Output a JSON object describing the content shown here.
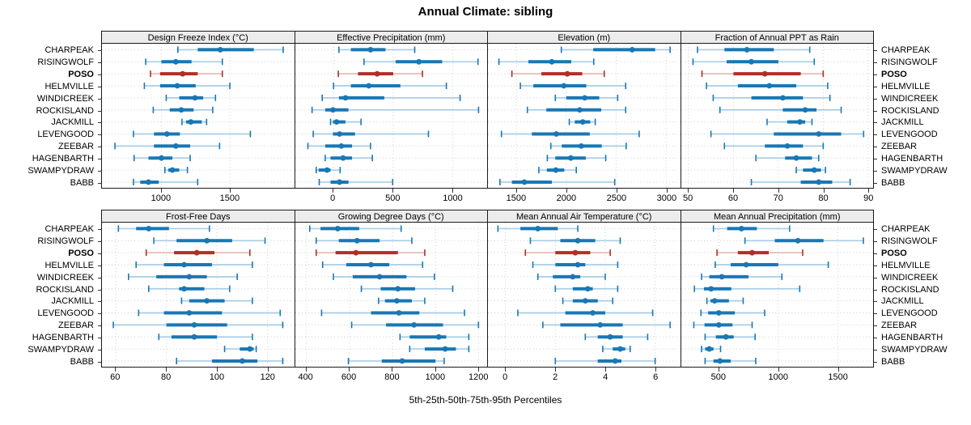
{
  "title": "Annual Climate: sibling",
  "caption": "5th-25th-50th-75th-95th Percentiles",
  "highlight_site": "POSO",
  "sites": [
    "CHARPEAK",
    "RISINGWOLF",
    "POSO",
    "HELMVILLE",
    "WINDICREEK",
    "ROCKISLAND",
    "JACKMILL",
    "LEVENGOOD",
    "ZEEBAR",
    "HAGENBARTH",
    "SWAMPYDRAW",
    "BABB"
  ],
  "colors": {
    "blue": "#1878b4",
    "blue_light": "#a9cde6",
    "red": "#b22e25",
    "red_light": "#e6bcb8",
    "grid": "#cfcfcf",
    "border": "#1a1a1a",
    "header_bg": "#ececec"
  },
  "chart_data": {
    "type": "dotplot-percentiles",
    "percentile_labels": [
      "5th",
      "25th",
      "50th",
      "75th",
      "95th"
    ],
    "grid": {
      "rows": 2,
      "cols": 4
    },
    "panels": [
      {
        "title": "Design Freeze Index (°C)",
        "xlim": [
          565,
          1970
        ],
        "ticks": [
          1000,
          1500
        ],
        "values": [
          [
            1120,
            1265,
            1430,
            1675,
            1890
          ],
          [
            885,
            1000,
            1105,
            1220,
            1445
          ],
          [
            920,
            990,
            1155,
            1265,
            1445
          ],
          [
            875,
            990,
            1115,
            1250,
            1500
          ],
          [
            1035,
            1130,
            1245,
            1305,
            1395
          ],
          [
            940,
            1060,
            1145,
            1235,
            1375
          ],
          [
            1150,
            1180,
            1215,
            1295,
            1330
          ],
          [
            795,
            945,
            1040,
            1135,
            1650
          ],
          [
            660,
            945,
            1105,
            1210,
            1425
          ],
          [
            800,
            905,
            1000,
            1080,
            1210
          ],
          [
            1025,
            1050,
            1080,
            1130,
            1190
          ],
          [
            795,
            845,
            905,
            980,
            1265
          ]
        ]
      },
      {
        "title": "Effective Precipitation (mm)",
        "xlim": [
          -320,
          1290
        ],
        "ticks": [
          0,
          500,
          1000
        ],
        "values": [
          [
            45,
            145,
            310,
            435,
            680
          ],
          [
            255,
            520,
            715,
            910,
            1210
          ],
          [
            40,
            205,
            365,
            500,
            745
          ],
          [
            0,
            145,
            295,
            560,
            945
          ],
          [
            -95,
            45,
            100,
            425,
            1060
          ],
          [
            -180,
            -70,
            -5,
            125,
            1215
          ],
          [
            -25,
            -5,
            25,
            100,
            230
          ],
          [
            -170,
            -5,
            50,
            180,
            795
          ],
          [
            -215,
            -70,
            65,
            155,
            310
          ],
          [
            -70,
            -25,
            80,
            155,
            325
          ],
          [
            -145,
            -125,
            -55,
            -25,
            55
          ],
          [
            -120,
            -25,
            50,
            125,
            495
          ]
        ]
      },
      {
        "title": "Elevation (m)",
        "xlim": [
          1215,
          3140
        ],
        "ticks": [
          1500,
          2000,
          2500,
          3000
        ],
        "values": [
          [
            1950,
            2270,
            2660,
            2890,
            3040
          ],
          [
            1325,
            1620,
            1855,
            2050,
            2275
          ],
          [
            1455,
            1750,
            2010,
            2160,
            2380
          ],
          [
            1540,
            1670,
            1975,
            2200,
            2595
          ],
          [
            1890,
            2000,
            2185,
            2330,
            2515
          ],
          [
            1610,
            1800,
            2135,
            2350,
            2595
          ],
          [
            2030,
            2085,
            2165,
            2240,
            2290
          ],
          [
            1350,
            1655,
            1900,
            2235,
            2730
          ],
          [
            1845,
            1955,
            2150,
            2355,
            2600
          ],
          [
            1810,
            1890,
            2045,
            2195,
            2395
          ],
          [
            1725,
            1805,
            1895,
            1980,
            2100
          ],
          [
            1335,
            1455,
            1580,
            1855,
            2485
          ]
        ]
      },
      {
        "title": "Fraction of Annual PPT as Rain",
        "xlim": [
          48.4,
          91.2
        ],
        "ticks": [
          50,
          60,
          70,
          80,
          90
        ],
        "values": [
          [
            52,
            58,
            63,
            69,
            77
          ],
          [
            51,
            58.5,
            64,
            70,
            78
          ],
          [
            53,
            60,
            67,
            75,
            80
          ],
          [
            54,
            61,
            68,
            74,
            81
          ],
          [
            55.5,
            64,
            71,
            75.5,
            81.5
          ],
          [
            57,
            71,
            76,
            78.5,
            84
          ],
          [
            67.5,
            72,
            74.8,
            76,
            77.5
          ],
          [
            55,
            69,
            79,
            84,
            89
          ],
          [
            58,
            67,
            72,
            75.5,
            80
          ],
          [
            65,
            71.5,
            74,
            77.5,
            79
          ],
          [
            74,
            75.5,
            78,
            79.5,
            80.5
          ],
          [
            64,
            75,
            79,
            82,
            86
          ]
        ]
      },
      {
        "title": "Frost-Free Days",
        "xlim": [
          54.5,
          130.5
        ],
        "ticks": [
          60,
          80,
          100,
          120
        ],
        "values": [
          [
            61,
            68,
            73,
            81,
            97
          ],
          [
            75,
            84,
            96,
            106,
            119
          ],
          [
            72,
            83,
            92,
            99,
            113
          ],
          [
            68,
            79,
            87,
            98,
            114
          ],
          [
            65,
            76,
            89,
            96,
            108
          ],
          [
            73,
            85,
            87,
            95,
            105
          ],
          [
            86,
            89,
            96,
            103,
            114
          ],
          [
            69,
            79,
            89,
            102,
            125
          ],
          [
            59,
            80,
            91,
            104,
            126
          ],
          [
            77,
            82,
            91,
            100,
            114
          ],
          [
            103,
            109,
            113,
            114.5,
            115.5
          ],
          [
            84,
            98,
            110,
            116,
            126
          ]
        ]
      },
      {
        "title": "Growing Degree Days (°C)",
        "xlim": [
          348,
          1242
        ],
        "ticks": [
          400,
          600,
          800,
          1000,
          1200
        ],
        "values": [
          [
            415,
            465,
            545,
            645,
            840
          ],
          [
            445,
            550,
            635,
            740,
            890
          ],
          [
            445,
            535,
            630,
            825,
            950
          ],
          [
            475,
            585,
            700,
            785,
            940
          ],
          [
            525,
            615,
            740,
            865,
            995
          ],
          [
            655,
            745,
            825,
            905,
            1080
          ],
          [
            735,
            765,
            820,
            890,
            950
          ],
          [
            470,
            700,
            830,
            925,
            1135
          ],
          [
            610,
            770,
            900,
            1035,
            1200
          ],
          [
            835,
            880,
            1015,
            1050,
            1155
          ],
          [
            880,
            950,
            1045,
            1095,
            1155
          ],
          [
            595,
            750,
            845,
            1000,
            1040
          ]
        ]
      },
      {
        "title": "Mean Annual Air Temperature (°C)",
        "xlim": [
          -0.7,
          7.0
        ],
        "ticks": [
          0,
          2,
          4,
          6
        ],
        "values": [
          [
            -0.3,
            0.6,
            1.3,
            2.1,
            2.9
          ],
          [
            1.0,
            2.2,
            2.9,
            3.6,
            4.6
          ],
          [
            0.8,
            2.0,
            2.8,
            3.4,
            4.2
          ],
          [
            1.1,
            2.0,
            2.9,
            3.2,
            4.5
          ],
          [
            1.3,
            1.9,
            2.7,
            3.0,
            4.0
          ],
          [
            2.0,
            2.7,
            3.3,
            3.5,
            4.5
          ],
          [
            2.3,
            2.7,
            3.2,
            3.7,
            4.3
          ],
          [
            0.5,
            2.4,
            3.5,
            4.0,
            5.9
          ],
          [
            1.5,
            2.2,
            3.8,
            4.7,
            6.6
          ],
          [
            3.2,
            3.7,
            4.2,
            4.7,
            5.7
          ],
          [
            3.9,
            4.3,
            4.6,
            4.8,
            5.0
          ],
          [
            2.0,
            3.7,
            4.4,
            4.65,
            6.0
          ]
        ]
      },
      {
        "title": "Mean Annual Precipitation (mm)",
        "xlim": [
          185,
          1800
        ],
        "ticks": [
          500,
          1000,
          1500
        ],
        "values": [
          [
            455,
            570,
            690,
            820,
            1095
          ],
          [
            720,
            970,
            1165,
            1380,
            1715
          ],
          [
            485,
            660,
            780,
            920,
            1205
          ],
          [
            470,
            600,
            730,
            1000,
            1420
          ],
          [
            355,
            420,
            525,
            750,
            1030
          ],
          [
            295,
            375,
            435,
            605,
            1180
          ],
          [
            400,
            430,
            465,
            585,
            705
          ],
          [
            350,
            410,
            500,
            635,
            885
          ],
          [
            290,
            380,
            500,
            615,
            780
          ],
          [
            385,
            475,
            560,
            625,
            805
          ],
          [
            355,
            385,
            420,
            455,
            515
          ],
          [
            385,
            455,
            510,
            600,
            810
          ]
        ]
      }
    ]
  }
}
